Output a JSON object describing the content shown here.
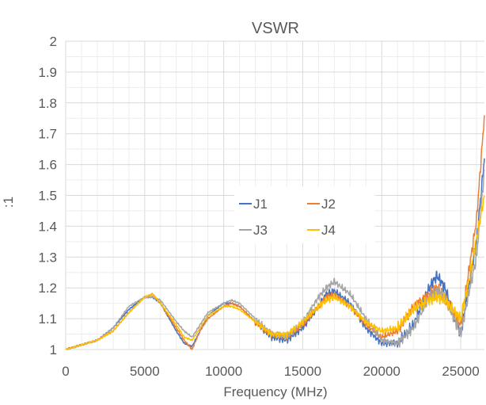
{
  "chart_data": {
    "type": "line",
    "title": "VSWR",
    "xlabel": "Frequency (MHz)",
    "ylabel": ":1",
    "xlim": [
      0,
      26500
    ],
    "ylim": [
      1,
      2
    ],
    "x_ticks": [
      0,
      5000,
      10000,
      15000,
      20000,
      25000
    ],
    "y_ticks": [
      1,
      1.1,
      1.2,
      1.3,
      1.4,
      1.5,
      1.6,
      1.7,
      1.8,
      1.9,
      2
    ],
    "x_tick_labels": [
      "0",
      "5000",
      "10000",
      "15000",
      "20000",
      "25000"
    ],
    "y_tick_labels": [
      "1",
      "1.1",
      "1.2",
      "1.3",
      "1.4",
      "1.5",
      "1.6",
      "1.7",
      "1.8",
      "1.9",
      "2"
    ],
    "grid": true,
    "legend_position": "center",
    "series": [
      {
        "name": "J1",
        "color": "#4472C4",
        "x": [
          0,
          1000,
          2000,
          3000,
          4000,
          5000,
          5500,
          6000,
          7000,
          7500,
          8000,
          8500,
          9000,
          10000,
          10500,
          11000,
          12000,
          13000,
          14000,
          15000,
          16000,
          16500,
          17000,
          18000,
          19000,
          20000,
          21000,
          22000,
          23000,
          23500,
          24000,
          24500,
          25000,
          25500,
          26000,
          26500
        ],
        "y": [
          1.0,
          1.015,
          1.03,
          1.07,
          1.13,
          1.17,
          1.17,
          1.15,
          1.06,
          1.02,
          1.01,
          1.06,
          1.11,
          1.15,
          1.15,
          1.14,
          1.09,
          1.04,
          1.03,
          1.07,
          1.14,
          1.18,
          1.19,
          1.15,
          1.07,
          1.02,
          1.02,
          1.08,
          1.2,
          1.24,
          1.2,
          1.12,
          1.05,
          1.2,
          1.35,
          1.62
        ]
      },
      {
        "name": "J2",
        "color": "#ED7D31",
        "x": [
          0,
          1000,
          2000,
          3000,
          4000,
          5000,
          5500,
          6000,
          7000,
          7500,
          8000,
          8500,
          9000,
          10000,
          10500,
          11000,
          12000,
          13000,
          14000,
          15000,
          16000,
          16500,
          17000,
          18000,
          19000,
          20000,
          21000,
          22000,
          23000,
          23500,
          24000,
          24500,
          25000,
          25500,
          26000,
          26500
        ],
        "y": [
          1.0,
          1.015,
          1.03,
          1.06,
          1.12,
          1.17,
          1.18,
          1.15,
          1.07,
          1.03,
          1.0,
          1.06,
          1.1,
          1.14,
          1.15,
          1.14,
          1.09,
          1.05,
          1.04,
          1.08,
          1.14,
          1.17,
          1.18,
          1.14,
          1.08,
          1.04,
          1.06,
          1.14,
          1.18,
          1.2,
          1.17,
          1.12,
          1.08,
          1.25,
          1.42,
          1.76
        ]
      },
      {
        "name": "J3",
        "color": "#A5A5A5",
        "x": [
          0,
          1000,
          2000,
          3000,
          4000,
          5000,
          5500,
          6000,
          7000,
          7500,
          8000,
          8500,
          9000,
          10000,
          10500,
          11000,
          12000,
          13000,
          14000,
          15000,
          16000,
          16500,
          17000,
          18000,
          19000,
          20000,
          21000,
          22000,
          23000,
          23500,
          24000,
          24500,
          25000,
          25500,
          26000,
          26500
        ],
        "y": [
          1.0,
          1.015,
          1.03,
          1.07,
          1.14,
          1.17,
          1.17,
          1.16,
          1.09,
          1.06,
          1.04,
          1.08,
          1.12,
          1.15,
          1.16,
          1.15,
          1.1,
          1.05,
          1.04,
          1.09,
          1.17,
          1.2,
          1.22,
          1.18,
          1.1,
          1.03,
          1.02,
          1.07,
          1.17,
          1.19,
          1.17,
          1.11,
          1.05,
          1.18,
          1.3,
          1.58
        ]
      },
      {
        "name": "J4",
        "color": "#FFC000",
        "x": [
          0,
          1000,
          2000,
          3000,
          4000,
          5000,
          5500,
          6000,
          7000,
          7500,
          8000,
          8500,
          9000,
          10000,
          10500,
          11000,
          12000,
          13000,
          14000,
          15000,
          16000,
          16500,
          17000,
          18000,
          19000,
          20000,
          21000,
          22000,
          23000,
          23500,
          24000,
          24500,
          25000,
          25500,
          26000,
          26500
        ],
        "y": [
          1.0,
          1.015,
          1.03,
          1.06,
          1.12,
          1.17,
          1.18,
          1.15,
          1.08,
          1.04,
          1.03,
          1.07,
          1.11,
          1.14,
          1.14,
          1.13,
          1.09,
          1.05,
          1.05,
          1.09,
          1.14,
          1.16,
          1.17,
          1.14,
          1.09,
          1.06,
          1.07,
          1.13,
          1.16,
          1.17,
          1.16,
          1.13,
          1.1,
          1.22,
          1.36,
          1.5
        ]
      }
    ]
  }
}
